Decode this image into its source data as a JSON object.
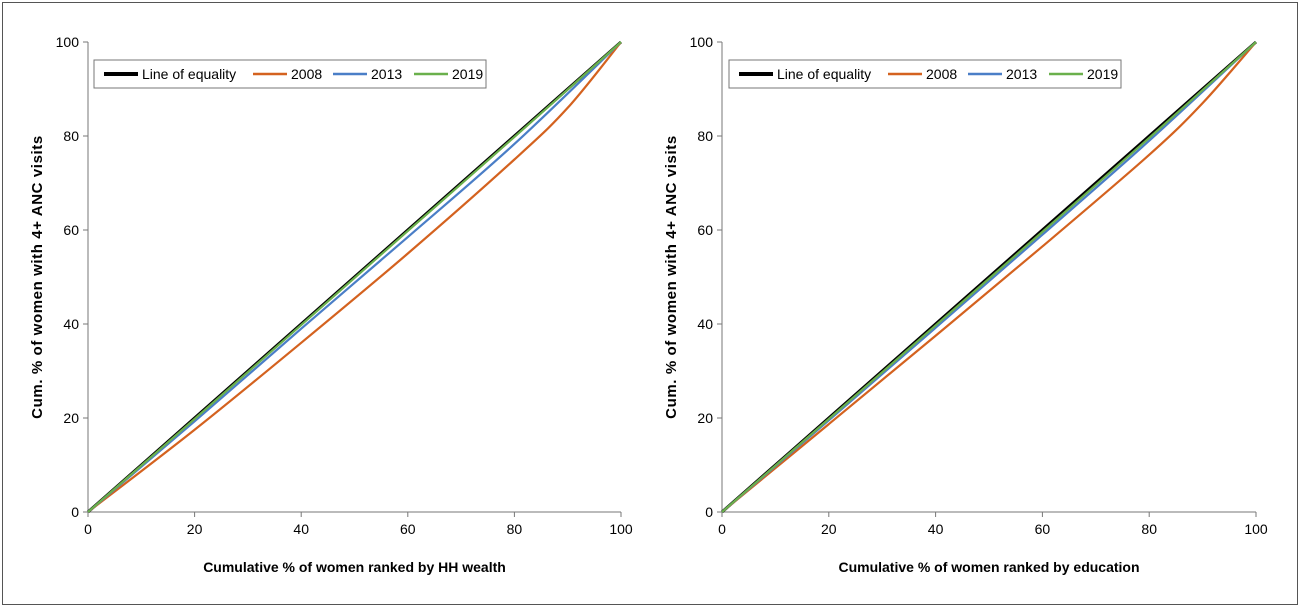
{
  "chart_data": [
    {
      "type": "line",
      "xlabel": "Cumulative % of women ranked by HH wealth",
      "ylabel": "Cum. % of women with 4+ ANC visits",
      "xlim": [
        0,
        100
      ],
      "ylim": [
        0,
        100
      ],
      "x_ticks": [
        0,
        20,
        40,
        60,
        80,
        100
      ],
      "y_ticks": [
        0,
        20,
        40,
        60,
        80,
        100
      ],
      "legend_position": "top-left",
      "grid": false,
      "series": [
        {
          "name": "Line of equality",
          "color": "#000000",
          "x": [
            0,
            20,
            40,
            60,
            80,
            100
          ],
          "y": [
            0,
            20,
            40,
            60,
            80,
            100
          ]
        },
        {
          "name": "2008",
          "color": "#d4621f",
          "x": [
            0,
            20,
            40,
            60,
            80,
            90,
            100
          ],
          "y": [
            0,
            17.5,
            36,
            55,
            75,
            86,
            100
          ]
        },
        {
          "name": "2013",
          "color": "#4a7ec7",
          "x": [
            0,
            20,
            40,
            60,
            80,
            100
          ],
          "y": [
            0,
            19.3,
            39,
            58.5,
            78.3,
            100
          ]
        },
        {
          "name": "2019",
          "color": "#6ab04c",
          "x": [
            0,
            20,
            40,
            60,
            80,
            100
          ],
          "y": [
            0,
            19.8,
            39.8,
            59.8,
            79.8,
            100
          ]
        }
      ]
    },
    {
      "type": "line",
      "xlabel": "Cumulative % of women ranked by education",
      "ylabel": "Cum. % of women with 4+ ANC visits",
      "xlim": [
        0,
        100
      ],
      "ylim": [
        0,
        100
      ],
      "x_ticks": [
        0,
        20,
        40,
        60,
        80,
        100
      ],
      "y_ticks": [
        0,
        20,
        40,
        60,
        80,
        100
      ],
      "legend_position": "top-left",
      "grid": false,
      "series": [
        {
          "name": "Line of equality",
          "color": "#000000",
          "x": [
            0,
            20,
            40,
            60,
            80,
            100
          ],
          "y": [
            0,
            20,
            40,
            60,
            80,
            100
          ]
        },
        {
          "name": "2008",
          "color": "#d4621f",
          "x": [
            0,
            20,
            40,
            60,
            80,
            90,
            100
          ],
          "y": [
            0,
            18.7,
            37.5,
            56.5,
            76,
            87,
            100
          ]
        },
        {
          "name": "2013",
          "color": "#4a7ec7",
          "x": [
            0,
            20,
            40,
            60,
            80,
            100
          ],
          "y": [
            0,
            19.5,
            39.2,
            59,
            79,
            100
          ]
        },
        {
          "name": "2019",
          "color": "#6ab04c",
          "x": [
            0,
            20,
            40,
            60,
            80,
            100
          ],
          "y": [
            0,
            19.8,
            39.7,
            59.6,
            79.6,
            100
          ]
        }
      ]
    }
  ]
}
